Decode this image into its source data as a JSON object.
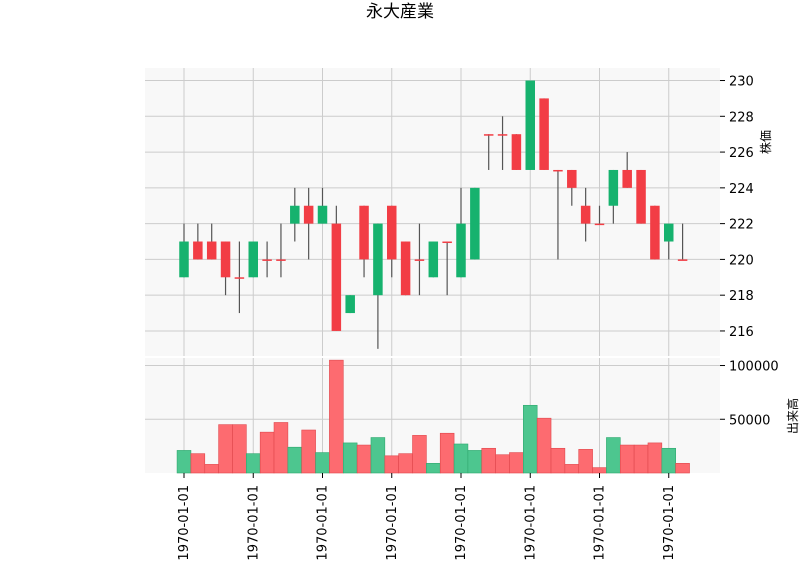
{
  "chart_data": {
    "type": "candlestick",
    "title": "永大産業",
    "x_tick_labels": [
      "1970-01-01",
      "1970-01-01",
      "1970-01-01",
      "1970-01-01",
      "1970-01-01",
      "1970-01-01",
      "1970-01-01",
      "1970-01-01"
    ],
    "price_panel": {
      "ylabel": "株価",
      "ylim": [
        214.6,
        230.7
      ],
      "yticks": [
        216,
        218,
        220,
        222,
        224,
        226,
        228,
        230
      ],
      "grid": true
    },
    "volume_panel": {
      "ylabel": "出来高",
      "ylim": [
        0,
        107000
      ],
      "yticks": [
        50000,
        100000
      ],
      "ytick_labels": [
        "50000",
        "100000"
      ],
      "grid": true
    },
    "colors": {
      "up": "#16b26e",
      "down": "#f23d45",
      "vol_up": "#4dc68f",
      "vol_down": "#fd6b70",
      "wick": "#555555",
      "panel_bg": "#f8f8f8",
      "grid": "#cccccc"
    },
    "candles": [
      {
        "open": 219,
        "close": 221,
        "high": 222,
        "low": 219,
        "volume": 21000
      },
      {
        "open": 221,
        "close": 220,
        "high": 222,
        "low": 220,
        "volume": 18000
      },
      {
        "open": 221,
        "close": 220,
        "high": 222,
        "low": 220,
        "volume": 8000
      },
      {
        "open": 221,
        "close": 219,
        "high": 221,
        "low": 218,
        "volume": 45000
      },
      {
        "open": 219,
        "close": 219,
        "high": 221,
        "low": 217,
        "volume": 45000
      },
      {
        "open": 219,
        "close": 221,
        "high": 221,
        "low": 219,
        "volume": 18000
      },
      {
        "open": 220,
        "close": 220,
        "high": 221,
        "low": 219,
        "volume": 38000
      },
      {
        "open": 220,
        "close": 220,
        "high": 222,
        "low": 219,
        "volume": 47000
      },
      {
        "open": 222,
        "close": 223,
        "high": 224,
        "low": 221,
        "volume": 24000
      },
      {
        "open": 223,
        "close": 222,
        "high": 224,
        "low": 220,
        "volume": 40000
      },
      {
        "open": 222,
        "close": 223,
        "high": 224,
        "low": 222,
        "volume": 19000
      },
      {
        "open": 222,
        "close": 216,
        "high": 223,
        "low": 216,
        "volume": 105000
      },
      {
        "open": 217,
        "close": 218,
        "high": 218,
        "low": 217,
        "volume": 28000
      },
      {
        "open": 223,
        "close": 220,
        "high": 223,
        "low": 219,
        "volume": 26000
      },
      {
        "open": 218,
        "close": 222,
        "high": 222,
        "low": 215,
        "volume": 33000
      },
      {
        "open": 223,
        "close": 220,
        "high": 223,
        "low": 219,
        "volume": 16000
      },
      {
        "open": 221,
        "close": 218,
        "high": 221,
        "low": 218,
        "volume": 18000
      },
      {
        "open": 220,
        "close": 220,
        "high": 222,
        "low": 218,
        "volume": 35000
      },
      {
        "open": 219,
        "close": 221,
        "high": 221,
        "low": 219,
        "volume": 9000
      },
      {
        "open": 221,
        "close": 221,
        "high": 221,
        "low": 218,
        "volume": 37000
      },
      {
        "open": 219,
        "close": 222,
        "high": 224,
        "low": 219,
        "volume": 27000
      },
      {
        "open": 220,
        "close": 224,
        "high": 224,
        "low": 220,
        "volume": 21000
      },
      {
        "open": 227,
        "close": 227,
        "high": 227,
        "low": 225,
        "volume": 23000
      },
      {
        "open": 227,
        "close": 227,
        "high": 228,
        "low": 225,
        "volume": 17000
      },
      {
        "open": 227,
        "close": 225,
        "high": 227,
        "low": 225,
        "volume": 19000
      },
      {
        "open": 225,
        "close": 230,
        "high": 230,
        "low": 225,
        "volume": 63000
      },
      {
        "open": 229,
        "close": 225,
        "high": 229,
        "low": 225,
        "volume": 51000
      },
      {
        "open": 225,
        "close": 225,
        "high": 225,
        "low": 220,
        "volume": 23000
      },
      {
        "open": 225,
        "close": 224,
        "high": 225,
        "low": 223,
        "volume": 8000
      },
      {
        "open": 223,
        "close": 222,
        "high": 224,
        "low": 221,
        "volume": 22000
      },
      {
        "open": 222,
        "close": 222,
        "high": 223,
        "low": 222,
        "volume": 5000
      },
      {
        "open": 223,
        "close": 225,
        "high": 225,
        "low": 222,
        "volume": 33000
      },
      {
        "open": 225,
        "close": 224,
        "high": 226,
        "low": 224,
        "volume": 26000
      },
      {
        "open": 225,
        "close": 222,
        "high": 225,
        "low": 222,
        "volume": 26000
      },
      {
        "open": 223,
        "close": 220,
        "high": 223,
        "low": 220,
        "volume": 28000
      },
      {
        "open": 221,
        "close": 222,
        "high": 222,
        "low": 220,
        "volume": 23000
      },
      {
        "open": 220,
        "close": 220,
        "high": 222,
        "low": 220,
        "volume": 9000
      }
    ]
  }
}
